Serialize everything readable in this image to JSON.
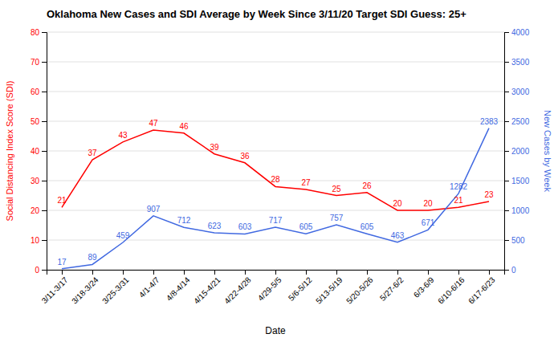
{
  "chart_data": {
    "type": "line",
    "title": "Oklahoma New Cases and SDI Average by Week Since 3/11/20 Target SDI Guess: 25+",
    "xlabel": "Date",
    "ylabel": "Social Distancing Index Score (SDI)",
    "y2label": "New Cases by Week",
    "categories": [
      "3/11-3/17",
      "3/18-3/24",
      "3/25-3/31",
      "4/1-4/7",
      "4/8-4/14",
      "4/15-4/21",
      "4/22-4/28",
      "4/29-5/5",
      "5/6-5/12",
      "5/13-5/19",
      "5/20-5/26",
      "5/27-6/2",
      "6/3-6/9",
      "6/10-6/16",
      "6/17-6/23"
    ],
    "series": [
      {
        "color": "#ff0000",
        "axis": "y",
        "values": [
          21,
          37,
          43,
          47,
          46,
          39,
          36,
          28,
          27,
          25,
          26,
          20,
          20,
          21,
          23
        ]
      },
      {
        "color": "#4169e1",
        "axis": "y2",
        "values": [
          17,
          89,
          459,
          907,
          712,
          623,
          603,
          717,
          605,
          757,
          605,
          463,
          671,
          1282,
          2383
        ]
      }
    ],
    "ylim": [
      0,
      80
    ],
    "yticks": [
      0,
      10,
      20,
      30,
      40,
      50,
      60,
      70,
      80
    ],
    "y2lim": [
      0,
      4000
    ],
    "y2ticks": [
      0,
      500,
      1000,
      1500,
      2000,
      2500,
      3000,
      3500,
      4000
    ],
    "grid": true,
    "data_labels": true
  }
}
